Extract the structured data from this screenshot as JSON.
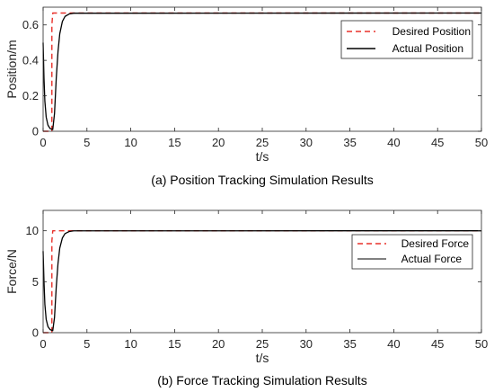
{
  "chart_data": [
    {
      "type": "line",
      "caption": "(a) Position Tracking Simulation Results",
      "xlabel": "t/s",
      "ylabel": "Position/m",
      "xlim": [
        0,
        50
      ],
      "ylim": [
        0,
        0.7
      ],
      "xticks": [
        0,
        5,
        10,
        15,
        20,
        25,
        30,
        35,
        40,
        45,
        50
      ],
      "yticks": [
        0,
        0.2,
        0.4,
        0.6
      ],
      "ytick_labels": [
        "0",
        "0.2",
        "0.4",
        "0.6"
      ],
      "grid": false,
      "legend_position": "top-right",
      "series": [
        {
          "name": "Desired Position",
          "color": "#e8302a",
          "style": "dashed",
          "points": [
            [
              0,
              0
            ],
            [
              1.0,
              0
            ],
            [
              1.0,
              0.6
            ],
            [
              1.1,
              0.667
            ],
            [
              50,
              0.667
            ]
          ]
        },
        {
          "name": "Actual Position",
          "color": "#000000",
          "style": "solid",
          "points": [
            [
              0,
              0.5
            ],
            [
              0.1,
              0.3
            ],
            [
              0.2,
              0.17
            ],
            [
              0.35,
              0.08
            ],
            [
              0.55,
              0.035
            ],
            [
              0.8,
              0.015
            ],
            [
              1.1,
              0.01
            ],
            [
              1.3,
              0.1
            ],
            [
              1.5,
              0.3
            ],
            [
              1.7,
              0.45
            ],
            [
              1.9,
              0.55
            ],
            [
              2.2,
              0.62
            ],
            [
              2.5,
              0.648
            ],
            [
              3.0,
              0.662
            ],
            [
              3.5,
              0.666
            ],
            [
              50,
              0.667
            ]
          ]
        }
      ]
    },
    {
      "type": "line",
      "caption": "(b) Force Tracking Simulation Results",
      "xlabel": "t/s",
      "ylabel": "Force/N",
      "xlim": [
        0,
        50
      ],
      "ylim": [
        0,
        12
      ],
      "xticks": [
        0,
        5,
        10,
        15,
        20,
        25,
        30,
        35,
        40,
        45,
        50
      ],
      "yticks": [
        0,
        5,
        10
      ],
      "ytick_labels": [
        "0",
        "5",
        "10"
      ],
      "grid": false,
      "legend_position": "top-right",
      "series": [
        {
          "name": "Desired Force",
          "color": "#e8302a",
          "style": "dashed",
          "points": [
            [
              0,
              0
            ],
            [
              1.0,
              0
            ],
            [
              1.0,
              9.0
            ],
            [
              1.1,
              10
            ],
            [
              50,
              10
            ]
          ]
        },
        {
          "name": "Actual Force",
          "color": "#000000",
          "style": "solid",
          "points": [
            [
              0,
              8.0
            ],
            [
              0.1,
              5.0
            ],
            [
              0.2,
              2.8
            ],
            [
              0.35,
              1.3
            ],
            [
              0.55,
              0.6
            ],
            [
              0.8,
              0.3
            ],
            [
              1.1,
              0.2
            ],
            [
              1.3,
              1.5
            ],
            [
              1.5,
              4.5
            ],
            [
              1.7,
              6.8
            ],
            [
              1.9,
              8.3
            ],
            [
              2.2,
              9.3
            ],
            [
              2.5,
              9.72
            ],
            [
              3.0,
              9.93
            ],
            [
              3.5,
              9.99
            ],
            [
              50,
              10
            ]
          ]
        }
      ]
    }
  ]
}
